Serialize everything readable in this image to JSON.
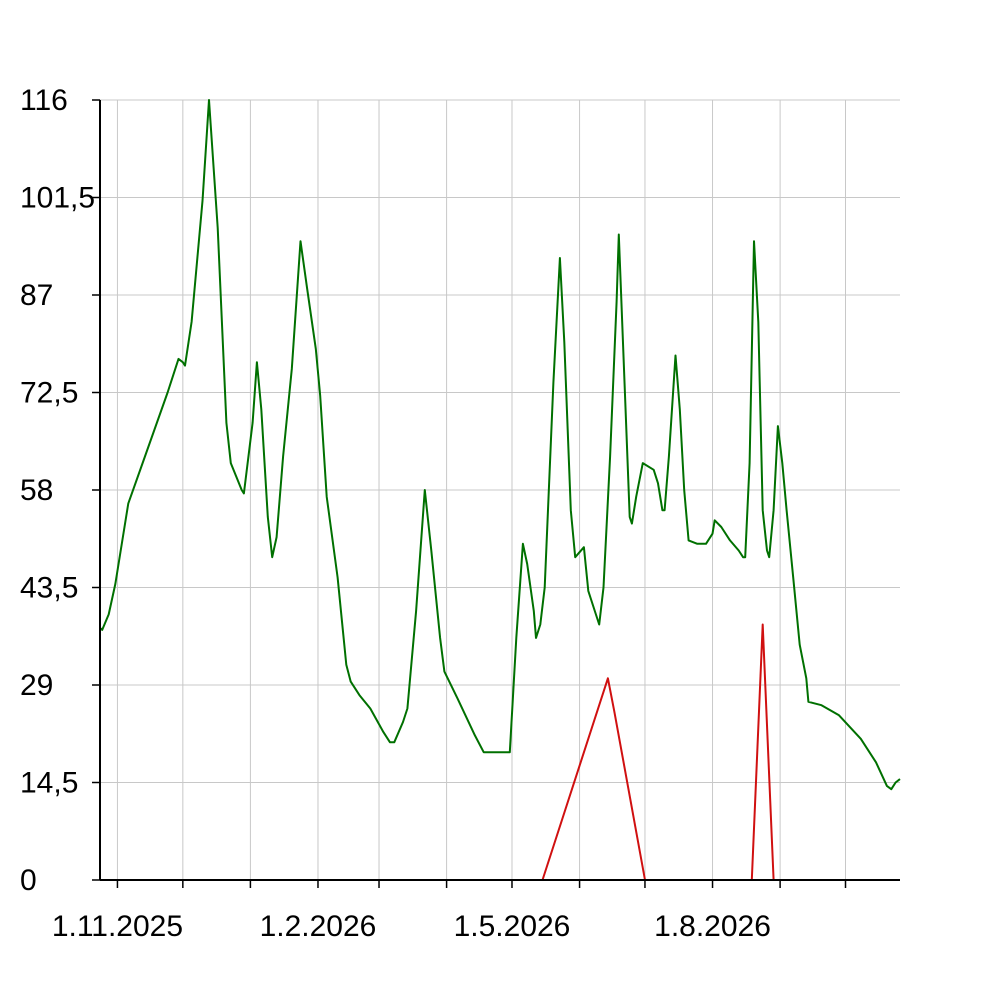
{
  "chart_data": {
    "type": "line",
    "title": "",
    "xlabel": "",
    "ylabel": "",
    "ylim": [
      0,
      116
    ],
    "yticks": [
      0,
      14.5,
      29,
      43.5,
      58,
      72.5,
      87,
      101.5,
      116
    ],
    "ytick_labels": [
      "0",
      "14,5",
      "29",
      "43,5",
      "58",
      "72,5",
      "87",
      "101,5",
      "116"
    ],
    "xlim": [
      "2025-10-24",
      "2026-10-26"
    ],
    "xgrid_dates": [
      "2025-11-01",
      "2025-12-01",
      "2026-01-01",
      "2026-02-01",
      "2026-03-01",
      "2026-04-01",
      "2026-05-01",
      "2026-06-01",
      "2026-07-01",
      "2026-08-01",
      "2026-09-01",
      "2026-10-01"
    ],
    "xtick_labels": [
      {
        "date": "2025-11-01",
        "label": "1.11.2025"
      },
      {
        "date": "2026-02-01",
        "label": "1.2.2026"
      },
      {
        "date": "2026-05-01",
        "label": "1.5.2026"
      },
      {
        "date": "2026-08-01",
        "label": "1.8.2026"
      }
    ],
    "grid": true,
    "series": [
      {
        "name": "green",
        "color": "#007000",
        "points": [
          [
            "2025-10-24",
            37.5
          ],
          [
            "2025-10-25",
            37.2
          ],
          [
            "2025-10-28",
            39.5
          ],
          [
            "2025-10-31",
            44
          ],
          [
            "2025-11-06",
            56
          ],
          [
            "2025-11-12",
            61.5
          ],
          [
            "2025-11-18",
            67
          ],
          [
            "2025-11-24",
            72.5
          ],
          [
            "2025-11-29",
            77.5
          ],
          [
            "2025-12-01",
            77
          ],
          [
            "2025-12-02",
            76.5
          ],
          [
            "2025-12-05",
            83
          ],
          [
            "2025-12-10",
            101
          ],
          [
            "2025-12-13",
            116
          ],
          [
            "2025-12-17",
            97
          ],
          [
            "2025-12-21",
            68
          ],
          [
            "2025-12-23",
            62
          ],
          [
            "2025-12-28",
            58
          ],
          [
            "2025-12-29",
            57.5
          ],
          [
            "2026-01-02",
            68
          ],
          [
            "2026-01-04",
            77
          ],
          [
            "2026-01-06",
            70
          ],
          [
            "2026-01-09",
            54
          ],
          [
            "2026-01-11",
            48
          ],
          [
            "2026-01-13",
            51
          ],
          [
            "2026-01-16",
            63
          ],
          [
            "2026-01-20",
            76
          ],
          [
            "2026-01-24",
            95
          ],
          [
            "2026-01-27",
            88
          ],
          [
            "2026-01-31",
            79
          ],
          [
            "2026-02-02",
            72
          ],
          [
            "2026-02-05",
            57
          ],
          [
            "2026-02-10",
            45
          ],
          [
            "2026-02-14",
            32
          ],
          [
            "2026-02-16",
            29.5
          ],
          [
            "2026-02-20",
            27.5
          ],
          [
            "2026-02-25",
            25.5
          ],
          [
            "2026-03-03",
            22
          ],
          [
            "2026-03-06",
            20.5
          ],
          [
            "2026-03-08",
            20.5
          ],
          [
            "2026-03-12",
            23.5
          ],
          [
            "2026-03-14",
            25.5
          ],
          [
            "2026-03-18",
            40
          ],
          [
            "2026-03-22",
            58
          ],
          [
            "2026-03-25",
            49
          ],
          [
            "2026-03-29",
            36
          ],
          [
            "2026-03-31",
            31
          ],
          [
            "2026-04-06",
            27
          ],
          [
            "2026-04-14",
            21.5
          ],
          [
            "2026-04-18",
            19
          ],
          [
            "2026-04-30",
            19
          ],
          [
            "2026-05-03",
            36
          ],
          [
            "2026-05-06",
            50
          ],
          [
            "2026-05-08",
            47
          ],
          [
            "2026-05-11",
            40
          ],
          [
            "2026-05-12",
            36
          ],
          [
            "2026-05-14",
            38
          ],
          [
            "2026-05-16",
            43.5
          ],
          [
            "2026-05-20",
            74
          ],
          [
            "2026-05-23",
            92.5
          ],
          [
            "2026-05-25",
            80
          ],
          [
            "2026-05-28",
            55
          ],
          [
            "2026-05-30",
            48
          ],
          [
            "2026-06-03",
            49.5
          ],
          [
            "2026-06-05",
            43
          ],
          [
            "2026-06-08",
            40
          ],
          [
            "2026-06-10",
            38
          ],
          [
            "2026-06-12",
            43.5
          ],
          [
            "2026-06-15",
            63
          ],
          [
            "2026-06-18",
            86
          ],
          [
            "2026-06-19",
            96
          ],
          [
            "2026-06-22",
            71
          ],
          [
            "2026-06-24",
            54
          ],
          [
            "2026-06-25",
            53
          ],
          [
            "2026-06-27",
            57
          ],
          [
            "2026-06-30",
            62
          ],
          [
            "2026-07-05",
            61
          ],
          [
            "2026-07-07",
            59
          ],
          [
            "2026-07-09",
            55
          ],
          [
            "2026-07-10",
            55
          ],
          [
            "2026-07-12",
            63
          ],
          [
            "2026-07-15",
            78
          ],
          [
            "2026-07-17",
            70
          ],
          [
            "2026-07-19",
            58
          ],
          [
            "2026-07-21",
            50.5
          ],
          [
            "2026-07-25",
            50
          ],
          [
            "2026-07-29",
            50
          ],
          [
            "2026-08-01",
            51.5
          ],
          [
            "2026-08-02",
            53.5
          ],
          [
            "2026-08-05",
            52.5
          ],
          [
            "2026-08-09",
            50.5
          ],
          [
            "2026-08-13",
            49
          ],
          [
            "2026-08-15",
            48
          ],
          [
            "2026-08-16",
            48
          ],
          [
            "2026-08-18",
            62
          ],
          [
            "2026-08-20",
            95
          ],
          [
            "2026-08-22",
            83
          ],
          [
            "2026-08-24",
            55
          ],
          [
            "2026-08-26",
            49
          ],
          [
            "2026-08-27",
            48
          ],
          [
            "2026-08-29",
            55
          ],
          [
            "2026-08-31",
            67.5
          ],
          [
            "2026-09-02",
            62
          ],
          [
            "2026-09-04",
            55
          ],
          [
            "2026-09-07",
            45
          ],
          [
            "2026-09-10",
            35
          ],
          [
            "2026-09-13",
            30
          ],
          [
            "2026-09-14",
            26.5
          ],
          [
            "2026-09-20",
            26
          ],
          [
            "2026-09-28",
            24.5
          ],
          [
            "2026-10-08",
            21
          ],
          [
            "2026-10-15",
            17.5
          ],
          [
            "2026-10-20",
            14
          ],
          [
            "2026-10-22",
            13.5
          ],
          [
            "2026-10-24",
            14.5
          ],
          [
            "2026-10-26",
            15
          ]
        ]
      },
      {
        "name": "red",
        "color": "#d01010",
        "points": [
          [
            "2025-10-24",
            0
          ],
          [
            "2026-05-15",
            0
          ],
          [
            "2026-06-14",
            30
          ],
          [
            "2026-06-17",
            25
          ],
          [
            "2026-07-01",
            0
          ],
          [
            "2026-08-19",
            0
          ],
          [
            "2026-08-24",
            38
          ],
          [
            "2026-08-29",
            0
          ],
          [
            "2026-10-26",
            0
          ]
        ]
      }
    ]
  }
}
